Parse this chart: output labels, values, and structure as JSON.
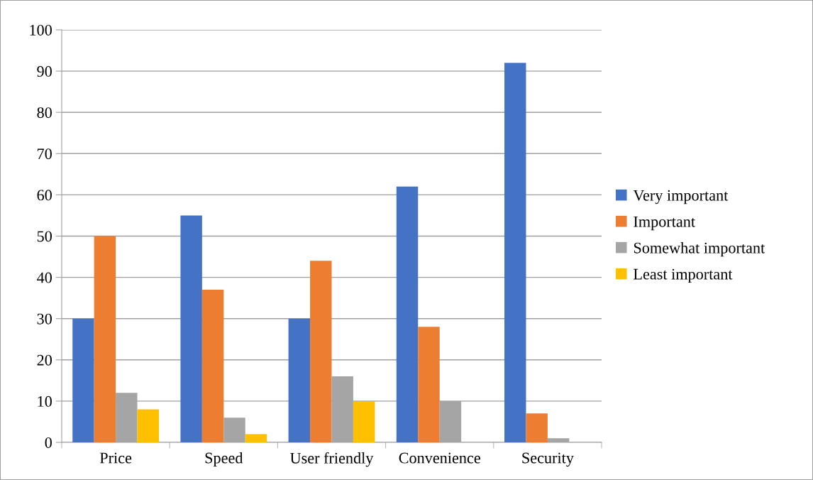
{
  "chart_data": {
    "type": "bar",
    "categories": [
      "Price",
      "Speed",
      "User friendly",
      "Convenience",
      "Security"
    ],
    "series": [
      {
        "name": "Very important",
        "color": "#4472c4",
        "values": [
          30,
          55,
          30,
          62,
          92
        ]
      },
      {
        "name": "Important",
        "color": "#ed7d31",
        "values": [
          50,
          37,
          44,
          28,
          7
        ]
      },
      {
        "name": "Somewhat important",
        "color": "#a5a5a5",
        "values": [
          12,
          6,
          16,
          10,
          1
        ]
      },
      {
        "name": "Least important",
        "color": "#ffc000",
        "values": [
          8,
          2,
          10,
          0,
          0
        ]
      }
    ],
    "ylim": [
      0,
      100
    ],
    "yticks": [
      0,
      10,
      20,
      30,
      40,
      50,
      60,
      70,
      80,
      90,
      100
    ],
    "grid": "y",
    "legend": "right"
  }
}
